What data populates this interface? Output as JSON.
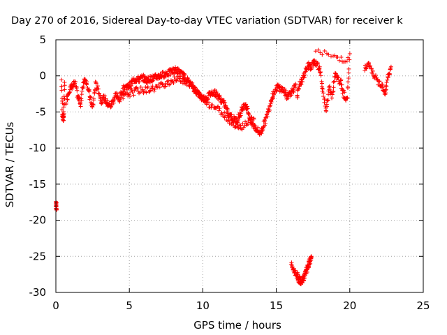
{
  "chart_data": {
    "type": "scatter",
    "title": "Day 270 of 2016, Sidereal Day-to-day VTEC variation (SDTVAR) for receiver k",
    "xlabel": "GPS time / hours",
    "ylabel": "SDTVAR / TECUs",
    "xlim": [
      0,
      25
    ],
    "ylim": [
      -30,
      5
    ],
    "xticks": [
      "0",
      "5",
      "10",
      "15",
      "20",
      "25"
    ],
    "yticks": [
      "5",
      "0",
      "-5",
      "-10",
      "-15",
      "-20",
      "-25",
      "-30"
    ],
    "grid": true,
    "marker": "+",
    "color": "#ff0000",
    "series": [
      {
        "name": "SDTVAR",
        "segments": [
          {
            "x": [
              0.0,
              0.02,
              0.04
            ],
            "y": [
              -17.4,
              -17.9,
              -18.4
            ]
          },
          {
            "x": [
              0.4,
              0.45,
              0.5,
              0.55,
              0.6
            ],
            "y": [
              -0.8,
              -5.5,
              -6.0,
              -5.2,
              -1.2
            ]
          },
          {
            "x": [
              0.7,
              0.9,
              1.1,
              1.3,
              1.5,
              1.7,
              1.9,
              2.1,
              2.3,
              2.5,
              2.7,
              2.9,
              3.1,
              3.3,
              3.5,
              3.7,
              3.9,
              4.1,
              4.3,
              4.5,
              4.7,
              4.9,
              5.1,
              5.3,
              5.5,
              5.7,
              5.9,
              6.1,
              6.3,
              6.5,
              6.7,
              6.9,
              7.1,
              7.3,
              7.5,
              7.7,
              7.9,
              8.1,
              8.3,
              8.5,
              8.7,
              8.9,
              9.1,
              9.3,
              9.5,
              9.7,
              9.9,
              10.1,
              10.3,
              10.5,
              10.7,
              10.9,
              11.1,
              11.3,
              11.5,
              11.7,
              11.9,
              12.1,
              12.3,
              12.5,
              12.7,
              12.9,
              13.1,
              13.3,
              13.5,
              13.7,
              13.9,
              14.1,
              14.3,
              14.5,
              14.7,
              14.9,
              15.1,
              15.3,
              15.5,
              15.7,
              15.9,
              16.1,
              16.3
            ],
            "y": [
              -3.5,
              -2.0,
              -1.5,
              -1.0,
              -3.0,
              -3.8,
              -0.5,
              -0.8,
              -2.8,
              -4.5,
              -1.2,
              -2.0,
              -3.5,
              -3.0,
              -3.8,
              -4.2,
              -3.5,
              -2.5,
              -3.5,
              -2.2,
              -1.5,
              -1.5,
              -1.2,
              -0.5,
              -0.5,
              -0.5,
              -0.2,
              -0.6,
              -0.5,
              -0.4,
              -0.3,
              -0.1,
              0.0,
              0.2,
              0.3,
              0.4,
              0.6,
              0.8,
              0.7,
              0.3,
              0.0,
              -0.5,
              -1.0,
              -1.5,
              -2.0,
              -2.5,
              -3.0,
              -3.2,
              -3.0,
              -2.5,
              -2.2,
              -2.5,
              -3.0,
              -3.5,
              -4.0,
              -5.0,
              -5.5,
              -6.0,
              -6.2,
              -5.5,
              -4.5,
              -3.8,
              -5.0,
              -6.5,
              -7.0,
              -7.5,
              -8.0,
              -7.0,
              -6.0,
              -4.5,
              -3.0,
              -2.0,
              -1.5,
              -1.8,
              -2.0,
              -2.8,
              -2.5,
              -2.0,
              -1.5
            ]
          },
          {
            "x": [
              4.5,
              5.0,
              5.5,
              6.0,
              6.5,
              7.0,
              7.5,
              8.0,
              8.5,
              9.0,
              9.5,
              10.0,
              10.5,
              11.0,
              11.5,
              12.0,
              12.5,
              13.0,
              13.5
            ],
            "y": [
              -3.0,
              -2.5,
              -2.0,
              -2.0,
              -1.8,
              -1.5,
              -1.0,
              -0.6,
              -0.4,
              -1.0,
              -2.0,
              -3.2,
              -4.0,
              -4.5,
              -5.5,
              -6.5,
              -7.2,
              -6.5,
              -5.8
            ]
          },
          {
            "x": [
              16.0,
              16.2,
              16.4,
              16.5,
              16.6,
              16.7,
              16.8,
              16.9,
              17.0,
              17.1,
              17.2,
              17.3,
              17.4
            ],
            "y": [
              -26.2,
              -27.0,
              -27.6,
              -28.0,
              -28.4,
              -28.5,
              -28.2,
              -27.8,
              -27.3,
              -26.8,
              -26.2,
              -25.6,
              -25.0
            ]
          },
          {
            "x": [
              16.4,
              16.6,
              16.8,
              17.0,
              17.2,
              17.4,
              17.6,
              17.8,
              18.0,
              18.2,
              18.4,
              18.6,
              18.8,
              19.0,
              19.2,
              19.4,
              19.6,
              19.8,
              20.0
            ],
            "y": [
              -3.0,
              -1.2,
              -0.5,
              0.8,
              1.5,
              1.2,
              2.0,
              1.5,
              0.5,
              -2.5,
              -5.0,
              -1.5,
              -3.0,
              0.2,
              -0.5,
              -1.0,
              -2.5,
              -3.5,
              2.8
            ]
          },
          {
            "x": [
              17.7,
              19.0,
              19.9
            ],
            "y": [
              3.4,
              2.6,
              2.2
            ]
          },
          {
            "x": [
              21.0,
              21.3,
              21.6,
              21.9,
              22.2,
              22.4,
              22.6,
              22.8
            ],
            "y": [
              1.0,
              1.5,
              0.2,
              -0.8,
              -1.2,
              -2.4,
              -0.2,
              1.2
            ]
          }
        ]
      }
    ]
  }
}
